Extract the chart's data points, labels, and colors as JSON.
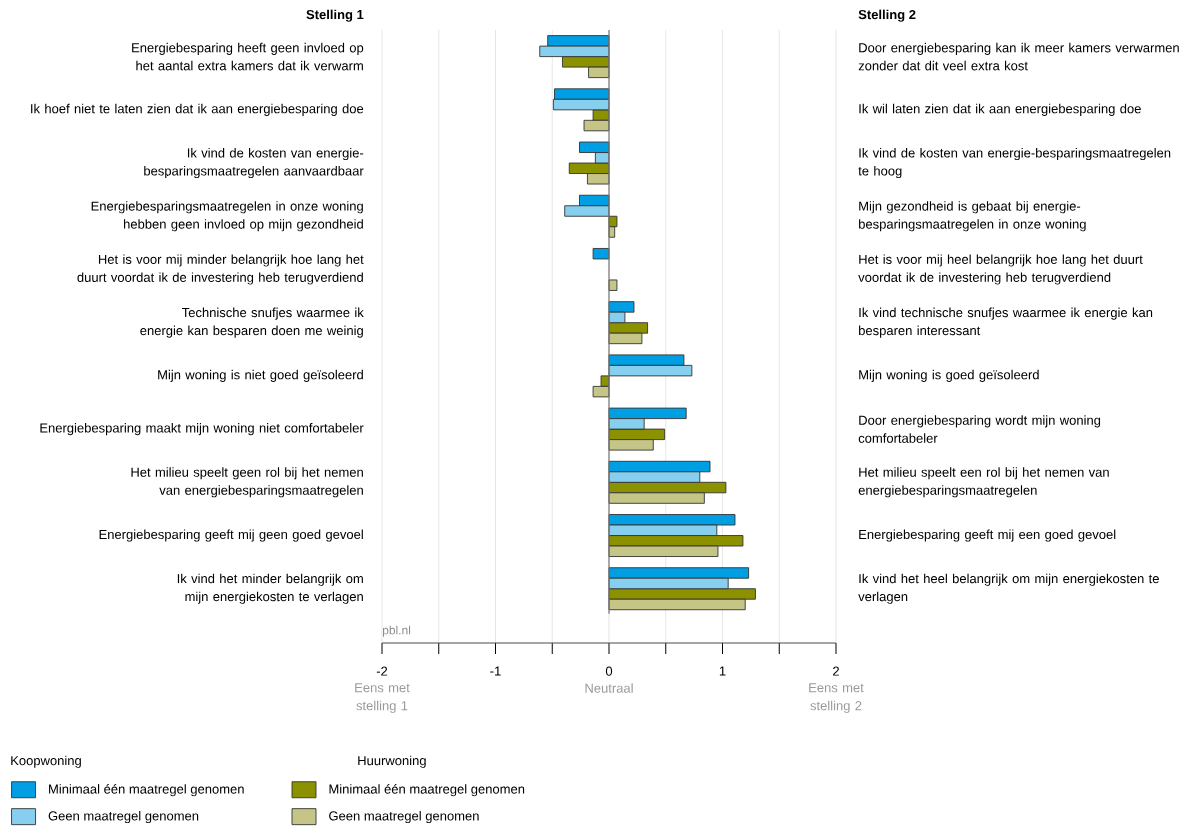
{
  "chart_data": {
    "type": "bar",
    "orientation": "horizontal",
    "ylabel": "Stelling 1",
    "y2label": "Stelling 2",
    "categories": [
      "Energiebesparing heeft geen invloed op het aantal extra kamers dat ik verwarm",
      "Ik hoef niet te laten zien dat ik aan energiebesparing doe",
      "Ik vind de kosten van energie-besparingsmaatregelen aanvaardbaar",
      "Energiebesparingsmaatregelen in onze woning hebben geen invloed op mijn gezondheid",
      "Het is voor mij minder belangrijk hoe lang het duurt voordat ik de investering heb terugverdiend",
      "Technische snufjes waarmee ik energie kan besparen doen me weinig",
      "Mijn woning is niet goed geïsoleerd",
      "Energiebesparing maakt mijn woning niet comfortabeler",
      "Het milieu speelt geen rol bij het nemen van energiebesparingsmaatregelen",
      "Energiebesparing geeft mij geen goed gevoel",
      "Ik vind het minder belangrijk om mijn energiekosten te verlagen"
    ],
    "y2_categories": [
      "Door energiebesparing kan ik meer kamers verwarmen zonder dat dit veel extra kost",
      "Ik wil laten zien dat ik aan energiebesparing doe",
      "Ik vind de kosten van energie-besparingsmaatregelen te hoog",
      "Mijn gezondheid is gebaat bij energie-besparingsmaatregelen in onze woning",
      "Het is voor mij heel belangrijk hoe lang het duurt voordat ik de investering heb terugverdiend",
      "Ik vind technische snufjes waarmee ik energie kan besparen interessant",
      "Mijn woning is goed geïsoleerd",
      "Door energiebesparing wordt mijn woning comfortabeler",
      "Het milieu speelt een rol bij het nemen van energiebesparingsmaatregelen",
      "Energiebesparing geeft mij een goed gevoel",
      "Ik vind het heel belangrijk om mijn energiekosten te verlagen"
    ],
    "series": [
      {
        "name": "Minimaal één maatregel genomen",
        "color": "#009fe3",
        "values": [
          -0.54,
          -0.48,
          -0.26,
          -0.26,
          -0.14,
          0.22,
          0.66,
          0.68,
          0.89,
          1.11,
          1.23
        ]
      },
      {
        "name": "Geen maatregel genomen",
        "color": "#87cfee",
        "values": [
          -0.61,
          -0.49,
          -0.12,
          -0.39,
          null,
          0.14,
          0.73,
          0.31,
          0.8,
          0.95,
          1.05
        ]
      },
      {
        "name": "Minimaal één maatregel genomen",
        "color": "#8c9100",
        "values": [
          -0.41,
          -0.14,
          -0.35,
          0.07,
          null,
          0.34,
          -0.07,
          0.49,
          1.03,
          1.18,
          1.29
        ]
      },
      {
        "name": "Geen maatregel genomen",
        "color": "#c5c587",
        "values": [
          -0.18,
          -0.22,
          -0.19,
          0.05,
          0.07,
          0.29,
          -0.14,
          0.39,
          0.84,
          0.96,
          1.2
        ]
      }
    ],
    "xlim": [
      -2,
      2
    ],
    "xticks": [
      -2,
      {
        "value": -1.5,
        "label": null
      },
      -1,
      {
        "value": -0.5,
        "label": null
      },
      0,
      {
        "value": 0.5,
        "label": null
      },
      1,
      {
        "value": 1.5,
        "label": null
      },
      2
    ],
    "grid": "x",
    "ref_lines": [
      {
        "axis": "x",
        "value": 0,
        "color": "#777777"
      }
    ],
    "legend": "bottom",
    "annotations": [
      "pbl.nl",
      "Koopwoning",
      "Huurwoning",
      "Eens met stelling 1",
      "Neutraal",
      "Eens met stelling 2"
    ]
  }
}
